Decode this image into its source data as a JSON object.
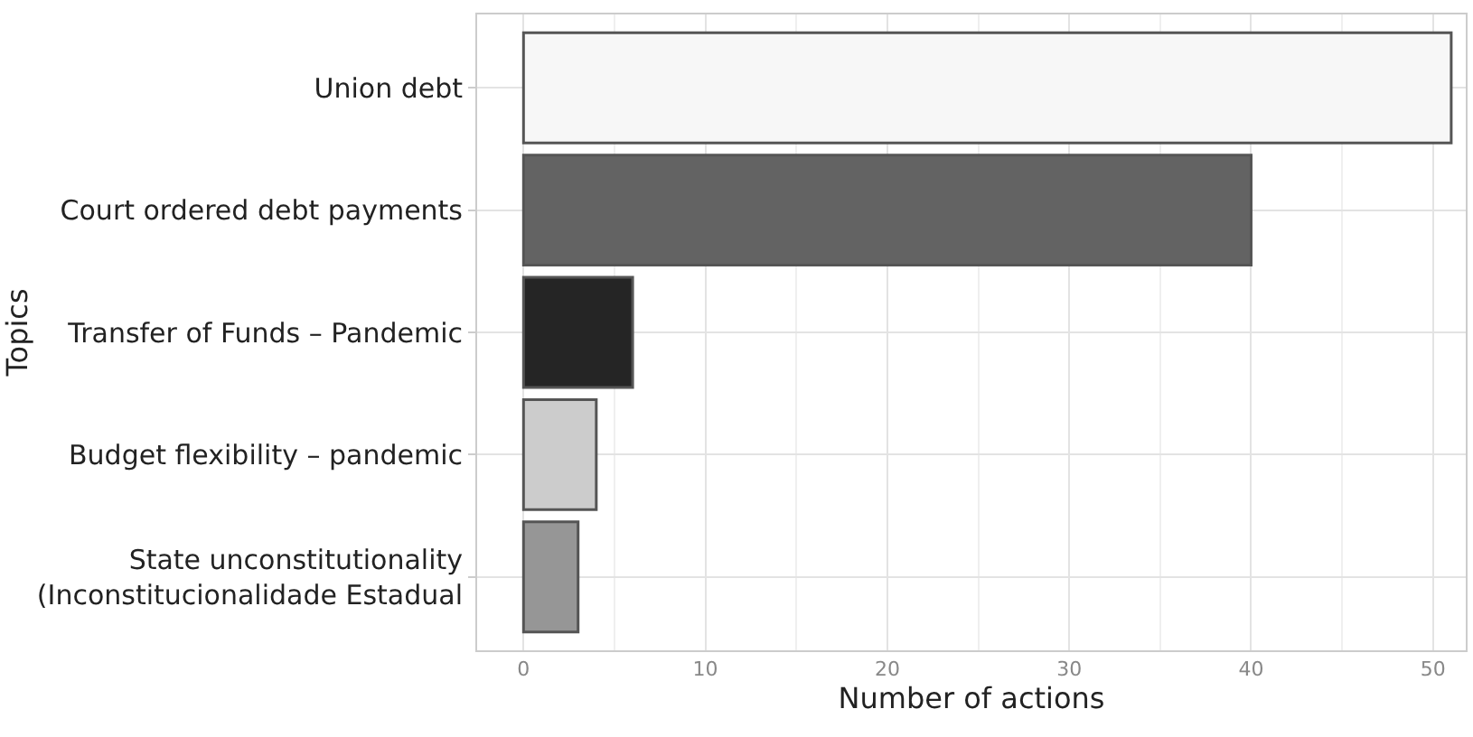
{
  "chart_data": {
    "type": "bar",
    "orientation": "horizontal",
    "categories": [
      "Union debt",
      "Court ordered debt payments",
      "Transfer of Funds – Pandemic",
      "Budget flexibility – pandemic",
      "State unconstitutionality\n(Inconstitucionalidade Estadual"
    ],
    "values": [
      51,
      40,
      6,
      4,
      3
    ],
    "colors": [
      "#f7f7f7",
      "#636363",
      "#252525",
      "#cccccc",
      "#969696"
    ],
    "xlabel": "Number of actions",
    "ylabel": "Topics",
    "xlim": [
      -2.55,
      51.8
    ],
    "xticks": [
      0,
      10,
      20,
      30,
      40,
      50
    ],
    "grid": true
  }
}
